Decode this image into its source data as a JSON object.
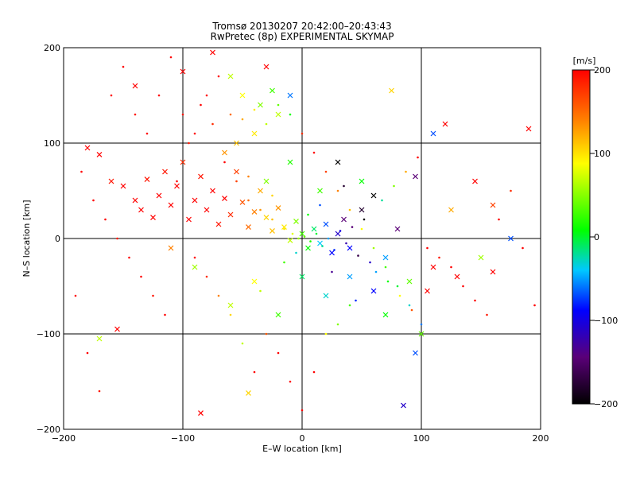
{
  "chart_data": {
    "type": "scatter",
    "title": "Tromsø 20130207 20:42:00–20:43:43",
    "subtitle": "RwPretec (8p) EXPERIMENTAL SKYMAP",
    "xlabel": "E–W location [km]",
    "ylabel": "N–S location [km]",
    "xlim": [
      -200,
      200
    ],
    "ylim": [
      -200,
      200
    ],
    "x_ticks": [
      "−200",
      "−100",
      "0",
      "100",
      "200"
    ],
    "y_ticks": [
      "−200",
      "−100",
      "0",
      "100",
      "200"
    ],
    "grid_lines": [
      -100,
      0,
      100
    ],
    "colorbar": {
      "label": "[m/s]",
      "range": [
        -200,
        200
      ],
      "ticks": [
        "200",
        "100",
        "0",
        "−100",
        "−200"
      ],
      "colors": [
        "#000000",
        "#5a0078",
        "#0000ff",
        "#00c8ff",
        "#00ff00",
        "#ffff00",
        "#ff8000",
        "#ff0000"
      ]
    },
    "series": [
      {
        "marker": "x",
        "points": [
          [
            -180,
            95,
            200
          ],
          [
            -170,
            88,
            200
          ],
          [
            -160,
            60,
            190
          ],
          [
            -150,
            55,
            200
          ],
          [
            -140,
            40,
            200
          ],
          [
            -135,
            30,
            200
          ],
          [
            -130,
            62,
            190
          ],
          [
            -125,
            22,
            200
          ],
          [
            -120,
            45,
            200
          ],
          [
            -115,
            70,
            190
          ],
          [
            -110,
            35,
            200
          ],
          [
            -105,
            55,
            200
          ],
          [
            -100,
            80,
            180
          ],
          [
            -95,
            20,
            200
          ],
          [
            -90,
            40,
            200
          ],
          [
            -85,
            65,
            190
          ],
          [
            -80,
            30,
            200
          ],
          [
            -75,
            50,
            200
          ],
          [
            -70,
            15,
            190
          ],
          [
            -65,
            42,
            200
          ],
          [
            -60,
            25,
            180
          ],
          [
            -55,
            70,
            170
          ],
          [
            -50,
            38,
            160
          ],
          [
            -45,
            12,
            150
          ],
          [
            -40,
            28,
            140
          ],
          [
            -35,
            50,
            120
          ],
          [
            -30,
            22,
            100
          ],
          [
            -25,
            8,
            110
          ],
          [
            -20,
            32,
            130
          ],
          [
            -15,
            12,
            90
          ],
          [
            -10,
            -2,
            60
          ],
          [
            -5,
            18,
            40
          ],
          [
            0,
            5,
            20
          ],
          [
            5,
            -10,
            0
          ],
          [
            10,
            10,
            -20
          ],
          [
            15,
            -5,
            -50
          ],
          [
            20,
            15,
            -80
          ],
          [
            25,
            -15,
            -100
          ],
          [
            30,
            5,
            -120
          ],
          [
            35,
            20,
            -150
          ],
          [
            40,
            -10,
            -100
          ],
          [
            50,
            30,
            -180
          ],
          [
            60,
            45,
            -200
          ],
          [
            70,
            -20,
            -60
          ],
          [
            80,
            10,
            -150
          ],
          [
            -170,
            -105,
            60
          ],
          [
            -155,
            -95,
            200
          ],
          [
            -85,
            -183,
            200
          ],
          [
            -45,
            -162,
            100
          ],
          [
            -30,
            180,
            200
          ],
          [
            -60,
            170,
            60
          ],
          [
            -140,
            160,
            200
          ],
          [
            -100,
            175,
            200
          ],
          [
            -75,
            195,
            200
          ],
          [
            120,
            120,
            200
          ],
          [
            160,
            -35,
            200
          ],
          [
            190,
            115,
            200
          ],
          [
            175,
            0,
            -80
          ],
          [
            150,
            -20,
            50
          ],
          [
            130,
            -40,
            200
          ],
          [
            105,
            -55,
            200
          ],
          [
            85,
            -175,
            -120
          ],
          [
            95,
            -120,
            -80
          ],
          [
            75,
            155,
            100
          ],
          [
            -50,
            150,
            80
          ],
          [
            -35,
            140,
            40
          ],
          [
            -25,
            155,
            20
          ],
          [
            -10,
            150,
            -70
          ],
          [
            -20,
            130,
            60
          ],
          [
            -40,
            110,
            90
          ],
          [
            -55,
            100,
            110
          ],
          [
            -65,
            90,
            130
          ],
          [
            -110,
            -10,
            140
          ],
          [
            -90,
            -30,
            50
          ],
          [
            -60,
            -70,
            60
          ],
          [
            -40,
            -45,
            80
          ],
          [
            -20,
            -80,
            20
          ],
          [
            0,
            -40,
            -20
          ],
          [
            20,
            -60,
            -40
          ],
          [
            40,
            -40,
            -60
          ],
          [
            60,
            -55,
            -100
          ],
          [
            70,
            -80,
            0
          ],
          [
            90,
            -45,
            30
          ],
          [
            110,
            -30,
            200
          ],
          [
            125,
            30,
            120
          ],
          [
            145,
            60,
            200
          ],
          [
            160,
            35,
            170
          ],
          [
            95,
            65,
            -150
          ],
          [
            110,
            110,
            -80
          ],
          [
            100,
            -100,
            30
          ],
          [
            -30,
            60,
            40
          ],
          [
            -10,
            80,
            10
          ],
          [
            30,
            80,
            -200
          ],
          [
            50,
            60,
            0
          ],
          [
            15,
            50,
            20
          ]
        ]
      },
      {
        "marker": "dot",
        "points": [
          [
            -185,
            70,
            200
          ],
          [
            -175,
            40,
            200
          ],
          [
            -165,
            20,
            200
          ],
          [
            -155,
            0,
            190
          ],
          [
            -145,
            -20,
            200
          ],
          [
            -135,
            -40,
            200
          ],
          [
            -125,
            -60,
            190
          ],
          [
            -115,
            -80,
            200
          ],
          [
            -105,
            60,
            200
          ],
          [
            -95,
            100,
            190
          ],
          [
            -85,
            140,
            200
          ],
          [
            -75,
            120,
            180
          ],
          [
            -65,
            80,
            200
          ],
          [
            -55,
            60,
            170
          ],
          [
            -45,
            40,
            150
          ],
          [
            -35,
            30,
            130
          ],
          [
            -25,
            20,
            110
          ],
          [
            -15,
            10,
            90
          ],
          [
            -8,
            5,
            70
          ],
          [
            -3,
            0,
            50
          ],
          [
            2,
            2,
            30
          ],
          [
            7,
            -3,
            10
          ],
          [
            12,
            5,
            -10
          ],
          [
            17,
            -8,
            -30
          ],
          [
            22,
            0,
            -60
          ],
          [
            27,
            -12,
            -90
          ],
          [
            32,
            8,
            -110
          ],
          [
            37,
            -5,
            -130
          ],
          [
            42,
            12,
            -150
          ],
          [
            47,
            -18,
            -170
          ],
          [
            52,
            20,
            -200
          ],
          [
            57,
            -25,
            -120
          ],
          [
            62,
            -35,
            -60
          ],
          [
            67,
            40,
            -30
          ],
          [
            72,
            -45,
            0
          ],
          [
            77,
            55,
            40
          ],
          [
            82,
            -60,
            80
          ],
          [
            87,
            70,
            120
          ],
          [
            92,
            -75,
            160
          ],
          [
            97,
            85,
            200
          ],
          [
            105,
            -10,
            200
          ],
          [
            115,
            -20,
            190
          ],
          [
            125,
            -30,
            200
          ],
          [
            135,
            -50,
            200
          ],
          [
            145,
            -65,
            200
          ],
          [
            155,
            -80,
            190
          ],
          [
            165,
            20,
            200
          ],
          [
            175,
            50,
            180
          ],
          [
            185,
            -10,
            200
          ],
          [
            195,
            -70,
            200
          ],
          [
            -190,
            -60,
            200
          ],
          [
            -180,
            -120,
            200
          ],
          [
            -170,
            -160,
            190
          ],
          [
            -160,
            150,
            200
          ],
          [
            -150,
            180,
            200
          ],
          [
            -140,
            130,
            190
          ],
          [
            -130,
            110,
            200
          ],
          [
            -120,
            150,
            200
          ],
          [
            -110,
            190,
            200
          ],
          [
            -100,
            130,
            190
          ],
          [
            -90,
            110,
            200
          ],
          [
            -80,
            150,
            200
          ],
          [
            -70,
            170,
            200
          ],
          [
            -60,
            130,
            150
          ],
          [
            -50,
            125,
            120
          ],
          [
            -40,
            135,
            90
          ],
          [
            -30,
            120,
            60
          ],
          [
            -20,
            140,
            30
          ],
          [
            -10,
            130,
            0
          ],
          [
            0,
            110,
            180
          ],
          [
            10,
            90,
            200
          ],
          [
            20,
            70,
            170
          ],
          [
            30,
            50,
            140
          ],
          [
            40,
            30,
            110
          ],
          [
            50,
            10,
            80
          ],
          [
            60,
            -10,
            50
          ],
          [
            70,
            -30,
            20
          ],
          [
            80,
            -50,
            -10
          ],
          [
            90,
            -70,
            -40
          ],
          [
            100,
            -90,
            -70
          ],
          [
            -20,
            -120,
            200
          ],
          [
            -10,
            -150,
            200
          ],
          [
            0,
            -180,
            200
          ],
          [
            10,
            -140,
            200
          ],
          [
            20,
            -100,
            80
          ],
          [
            30,
            -90,
            40
          ],
          [
            40,
            -70,
            20
          ],
          [
            -30,
            -100,
            160
          ],
          [
            -40,
            -140,
            200
          ],
          [
            -50,
            -110,
            60
          ],
          [
            -60,
            -80,
            100
          ],
          [
            -70,
            -60,
            140
          ],
          [
            -80,
            -40,
            180
          ],
          [
            -90,
            -20,
            200
          ],
          [
            5,
            25,
            0
          ],
          [
            -5,
            -15,
            -40
          ],
          [
            15,
            35,
            -80
          ],
          [
            -15,
            -25,
            20
          ],
          [
            25,
            -35,
            -140
          ],
          [
            -25,
            45,
            100
          ],
          [
            35,
            55,
            -180
          ],
          [
            -35,
            -55,
            60
          ],
          [
            45,
            -65,
            -90
          ],
          [
            -45,
            65,
            140
          ]
        ]
      }
    ]
  }
}
